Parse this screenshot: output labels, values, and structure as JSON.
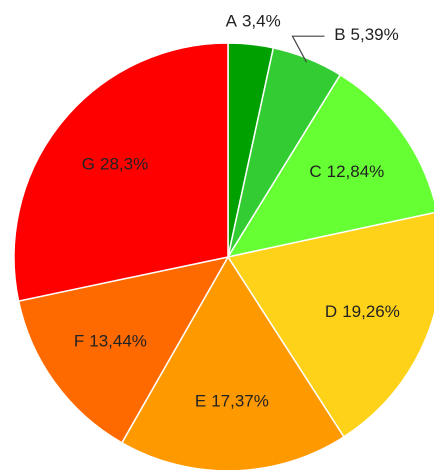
{
  "chart_data": {
    "type": "pie",
    "categories": [
      "A",
      "B",
      "C",
      "D",
      "E",
      "F",
      "G"
    ],
    "values": [
      3.4,
      5.39,
      12.84,
      19.26,
      17.37,
      13.44,
      28.3
    ],
    "value_labels": [
      "3,4%",
      "5,39%",
      "12,84%",
      "19,26%",
      "17,37%",
      "13,44%",
      "28,3%"
    ],
    "colors": [
      "#00a000",
      "#33cc33",
      "#66ff33",
      "#ffd21a",
      "#ff9900",
      "#ff6a00",
      "#ff0000"
    ]
  }
}
